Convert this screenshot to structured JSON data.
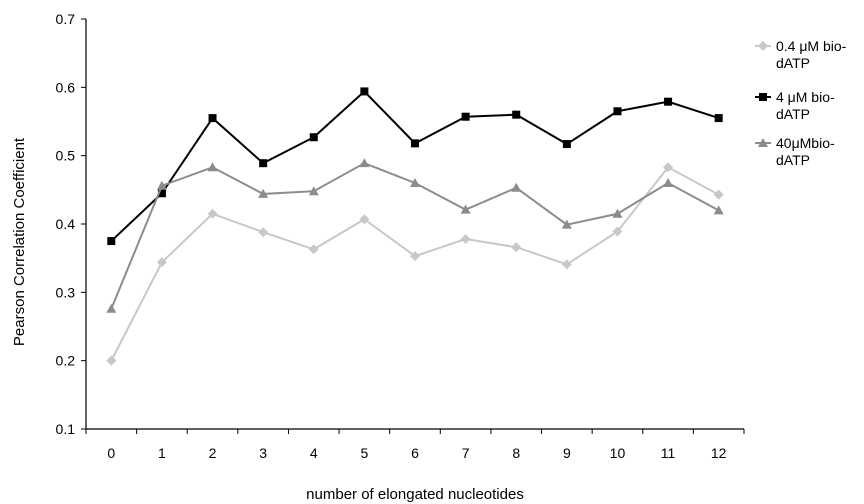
{
  "chart_data": {
    "type": "line",
    "title": "",
    "xlabel": "number of elongated nucleotides",
    "ylabel": "Pearson Correlation Coefficient",
    "x": [
      0,
      1,
      2,
      3,
      4,
      5,
      6,
      7,
      8,
      9,
      10,
      11,
      12
    ],
    "x_tick_labels": [
      "0",
      "1",
      "2",
      "3",
      "4",
      "5",
      "6",
      "7",
      "8",
      "9",
      "10",
      "11",
      "12"
    ],
    "ylim": [
      0.1,
      0.7
    ],
    "y_tick_labels": [
      "0.1",
      "0.2",
      "0.3",
      "0.4",
      "0.5",
      "0.6",
      "0.7"
    ],
    "grid": false,
    "legend_position": "right",
    "series": [
      {
        "name_lines": [
          "0.4 μM bio-",
          "dATP"
        ],
        "color": "#c8c8c8",
        "marker": "diamond",
        "values": [
          0.2,
          0.344,
          0.415,
          0.388,
          0.363,
          0.407,
          0.353,
          0.378,
          0.366,
          0.341,
          0.389,
          0.483,
          0.443
        ]
      },
      {
        "name_lines": [
          "4 μM bio-",
          "dATP"
        ],
        "color": "#000000",
        "marker": "square",
        "values": [
          0.375,
          0.445,
          0.555,
          0.489,
          0.527,
          0.594,
          0.518,
          0.557,
          0.56,
          0.517,
          0.565,
          0.579,
          0.555
        ]
      },
      {
        "name_lines": [
          " 40μMbio-",
          "dATP"
        ],
        "color": "#8c8c8c",
        "marker": "triangle",
        "values": [
          0.276,
          0.456,
          0.483,
          0.444,
          0.448,
          0.489,
          0.46,
          0.421,
          0.453,
          0.399,
          0.415,
          0.46,
          0.42
        ]
      }
    ]
  }
}
